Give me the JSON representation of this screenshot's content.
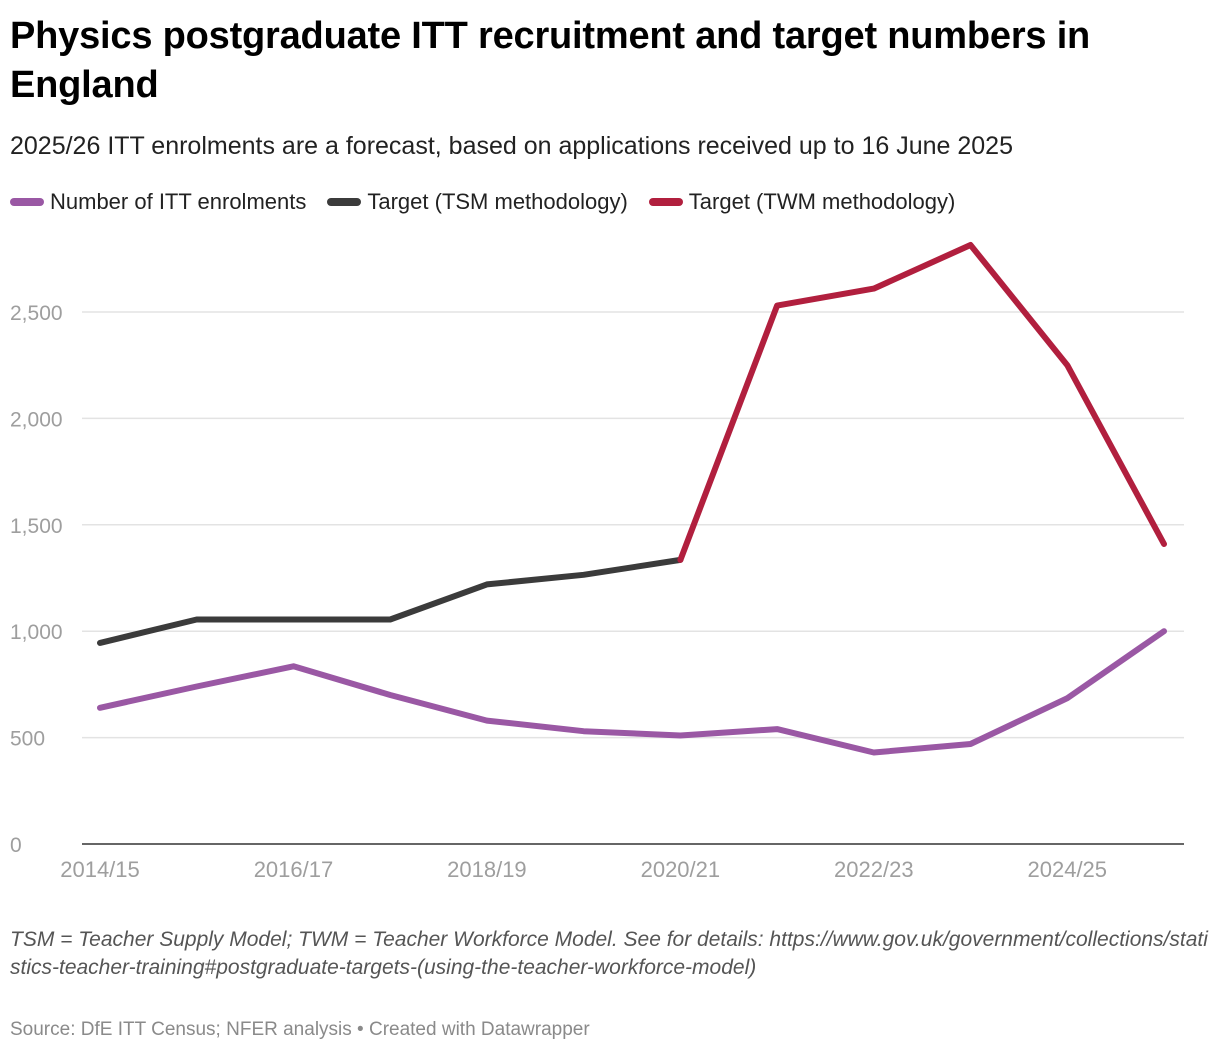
{
  "title": "Physics postgraduate ITT recruitment and target numbers in England",
  "subtitle": "2025/26 ITT enrolments are a forecast, based on applications received up to 16 June 2025",
  "colors": {
    "enrolments": "#9a58a4",
    "tsm": "#3b3b3b",
    "twm": "#b11f3e",
    "gridline": "#e3e3e3",
    "axis": "#333333",
    "tick_label": "#9e9e9e"
  },
  "chart_data": {
    "type": "line",
    "title": "Physics postgraduate ITT recruitment and target numbers in England",
    "xlabel": "",
    "ylabel": "",
    "x": [
      "2014/15",
      "2015/16",
      "2016/17",
      "2017/18",
      "2018/19",
      "2019/20",
      "2020/21",
      "2021/22",
      "2022/23",
      "2023/24",
      "2024/25",
      "2025/26"
    ],
    "x_tick_labels": [
      "2014/15",
      "2016/17",
      "2018/19",
      "2020/21",
      "2022/23",
      "2024/25"
    ],
    "y_ticks": [
      0,
      500,
      1000,
      1500,
      2000,
      2500
    ],
    "y_tick_labels": [
      "0",
      "500",
      "1,000",
      "1,500",
      "2,000",
      "2,500"
    ],
    "ylim": [
      0,
      2820
    ],
    "grid": true,
    "legend_position": "top-left",
    "series": [
      {
        "name": "Number of ITT enrolments",
        "key": "enrolments",
        "values": [
          640,
          740,
          835,
          700,
          580,
          530,
          510,
          540,
          430,
          470,
          685,
          1000
        ]
      },
      {
        "name": "Target (TSM methodology)",
        "key": "tsm",
        "values": [
          945,
          1055,
          1055,
          1055,
          1220,
          1265,
          1335,
          null,
          null,
          null,
          null,
          null
        ]
      },
      {
        "name": "Target (TWM methodology)",
        "key": "twm",
        "values": [
          null,
          null,
          null,
          null,
          null,
          null,
          1335,
          2530,
          2610,
          2815,
          2250,
          1410
        ]
      }
    ]
  },
  "notes": "TSM = Teacher Supply Model; TWM = Teacher Workforce Model. See for details: https://www.gov.uk/government/collections/statistics-teacher-training#postgraduate-targets-(using-the-teacher-workforce-model)",
  "source": "Source: DfE ITT Census; NFER analysis • Created with Datawrapper"
}
